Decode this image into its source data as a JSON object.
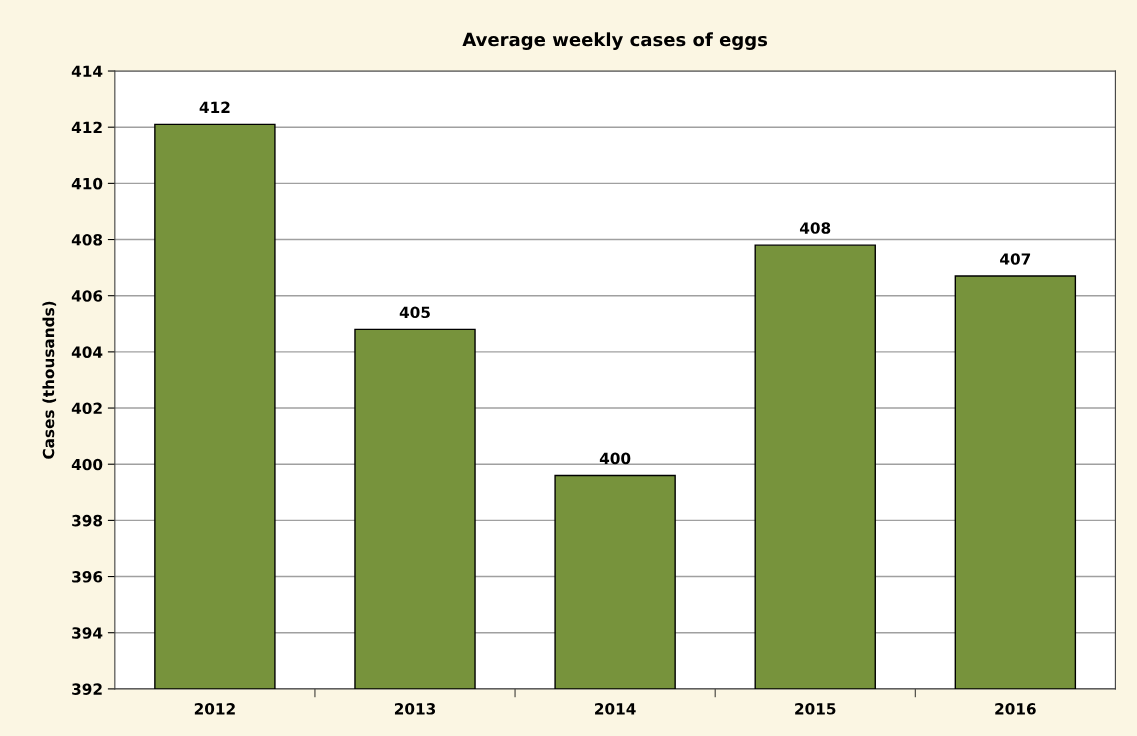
{
  "chart_data": {
    "type": "bar",
    "title": "Average weekly cases of eggs",
    "ylabel": "Cases (thousands)",
    "categories": [
      "2012",
      "2013",
      "2014",
      "2015",
      "2016"
    ],
    "values": [
      412.1,
      404.8,
      399.6,
      407.8,
      406.7
    ],
    "value_labels": [
      "412",
      "405",
      "400",
      "408",
      "407"
    ],
    "color": "#77933c",
    "ylim": [
      392,
      414
    ],
    "yticks": [
      392,
      394,
      396,
      398,
      400,
      402,
      404,
      406,
      408,
      410,
      412,
      414
    ],
    "grid": "y"
  }
}
